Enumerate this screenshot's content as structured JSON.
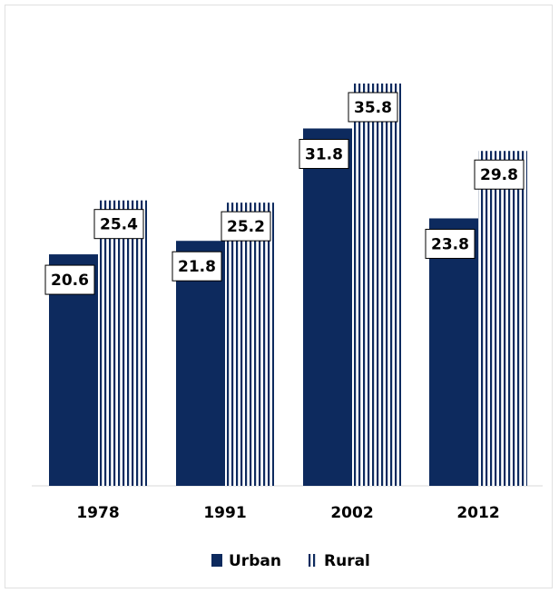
{
  "chart_data": {
    "type": "bar",
    "categories": [
      "1978",
      "1991",
      "2002",
      "2012"
    ],
    "series": [
      {
        "name": "Urban",
        "values": [
          20.6,
          21.8,
          31.8,
          23.8
        ],
        "color": "#0d2a5e",
        "pattern": "solid"
      },
      {
        "name": "Rural",
        "values": [
          25.4,
          25.2,
          35.8,
          29.8
        ],
        "color": "#0d2a5e",
        "pattern": "vertical-stripes"
      }
    ],
    "title": "",
    "xlabel": "",
    "ylabel": "",
    "ylim": [
      0,
      40
    ],
    "grid": false,
    "legend": "bottom-center",
    "data_labels": true
  }
}
